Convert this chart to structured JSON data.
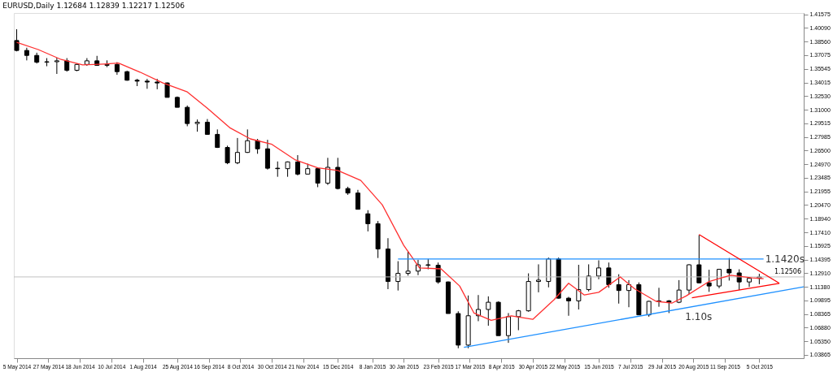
{
  "chart_data": {
    "type": "candlestick",
    "title": "EURUSD,Daily  1.12684 1.12839 1.12217 1.12506",
    "color": "#000000",
    "x": [
      "2014-05-05",
      "2014-05-12",
      "2014-05-19",
      "2014-05-26",
      "2014-06-02",
      "2014-06-09",
      "2014-06-16",
      "2014-06-23",
      "2014-06-30",
      "2014-07-07",
      "2014-07-14",
      "2014-07-21",
      "2014-07-28",
      "2014-08-04",
      "2014-08-11",
      "2014-08-18",
      "2014-08-25",
      "2014-09-01",
      "2014-09-08",
      "2014-09-15",
      "2014-09-22",
      "2014-09-29",
      "2014-10-06",
      "2014-10-13",
      "2014-10-20",
      "2014-10-27",
      "2014-11-03",
      "2014-11-10",
      "2014-11-17",
      "2014-11-24",
      "2014-12-01",
      "2014-12-08",
      "2014-12-15",
      "2014-12-22",
      "2014-12-29",
      "2015-01-05",
      "2015-01-12",
      "2015-01-19",
      "2015-01-26",
      "2015-02-02",
      "2015-02-09",
      "2015-02-16",
      "2015-02-23",
      "2015-03-02",
      "2015-03-09",
      "2015-03-16",
      "2015-03-23",
      "2015-03-30",
      "2015-04-06",
      "2015-04-13",
      "2015-04-20",
      "2015-04-27",
      "2015-05-04",
      "2015-05-11",
      "2015-05-18",
      "2015-05-25",
      "2015-06-01",
      "2015-06-08",
      "2015-06-15",
      "2015-06-22",
      "2015-06-29",
      "2015-07-06",
      "2015-07-13",
      "2015-07-20",
      "2015-07-27",
      "2015-08-03",
      "2015-08-10",
      "2015-08-17",
      "2015-08-24",
      "2015-08-31",
      "2015-09-07",
      "2015-09-14",
      "2015-09-21",
      "2015-09-28",
      "2015-10-05"
    ],
    "ohlc": [
      [
        1.387,
        1.3995,
        1.375,
        1.376
      ],
      [
        1.376,
        1.379,
        1.365,
        1.3705
      ],
      [
        1.3705,
        1.3735,
        1.3615,
        1.363
      ],
      [
        1.363,
        1.3675,
        1.3585,
        1.3635
      ],
      [
        1.3635,
        1.368,
        1.35,
        1.3645
      ],
      [
        1.3645,
        1.3675,
        1.3525,
        1.354
      ],
      [
        1.354,
        1.3615,
        1.353,
        1.3605
      ],
      [
        1.3605,
        1.3675,
        1.359,
        1.3645
      ],
      [
        1.3645,
        1.37,
        1.359,
        1.3595
      ],
      [
        1.3595,
        1.365,
        1.3575,
        1.3605
      ],
      [
        1.3605,
        1.363,
        1.349,
        1.3525
      ],
      [
        1.3525,
        1.3535,
        1.3425,
        1.343
      ],
      [
        1.343,
        1.3445,
        1.3365,
        1.342
      ],
      [
        1.342,
        1.3445,
        1.3335,
        1.341
      ],
      [
        1.341,
        1.3445,
        1.333,
        1.34
      ],
      [
        1.34,
        1.3405,
        1.324,
        1.324
      ],
      [
        1.324,
        1.325,
        1.313,
        1.313
      ],
      [
        1.313,
        1.315,
        1.292,
        1.295
      ],
      [
        1.295,
        1.2995,
        1.286,
        1.2965
      ],
      [
        1.2965,
        1.3,
        1.2825,
        1.283
      ],
      [
        1.283,
        1.2885,
        1.268,
        1.2685
      ],
      [
        1.2685,
        1.2705,
        1.25,
        1.2515
      ],
      [
        1.2515,
        1.279,
        1.25,
        1.263
      ],
      [
        1.263,
        1.2885,
        1.2625,
        1.276
      ],
      [
        1.276,
        1.278,
        1.2615,
        1.267
      ],
      [
        1.267,
        1.277,
        1.244,
        1.2455
      ],
      [
        1.2455,
        1.253,
        1.236,
        1.245
      ],
      [
        1.245,
        1.253,
        1.236,
        1.2525
      ],
      [
        1.2525,
        1.26,
        1.2375,
        1.239
      ],
      [
        1.239,
        1.2505,
        1.239,
        1.245
      ],
      [
        1.245,
        1.246,
        1.2245,
        1.229
      ],
      [
        1.229,
        1.257,
        1.227,
        1.2465
      ],
      [
        1.2465,
        1.257,
        1.222,
        1.223
      ],
      [
        1.223,
        1.225,
        1.216,
        1.218
      ],
      [
        1.218,
        1.2215,
        1.2,
        1.2
      ],
      [
        1.195,
        1.199,
        1.1755,
        1.184
      ],
      [
        1.184,
        1.187,
        1.146,
        1.156
      ],
      [
        1.156,
        1.168,
        1.1115,
        1.12
      ],
      [
        1.12,
        1.1425,
        1.11,
        1.129
      ],
      [
        1.129,
        1.1535,
        1.1265,
        1.1315
      ],
      [
        1.1315,
        1.144,
        1.127,
        1.1385
      ],
      [
        1.1385,
        1.145,
        1.1335,
        1.138
      ],
      [
        1.138,
        1.141,
        1.1175,
        1.1195
      ],
      [
        1.1195,
        1.12,
        1.0845,
        1.0845
      ],
      [
        1.0845,
        1.087,
        1.046,
        1.0495
      ],
      [
        1.0495,
        1.1045,
        1.046,
        1.082
      ],
      [
        1.082,
        1.105,
        1.076,
        1.089
      ],
      [
        1.089,
        1.1035,
        1.071,
        1.097
      ],
      [
        1.097,
        1.098,
        1.06,
        1.06
      ],
      [
        1.06,
        1.085,
        1.052,
        1.081
      ],
      [
        1.081,
        1.0885,
        1.066,
        1.0875
      ],
      [
        1.0875,
        1.129,
        1.0865,
        1.12
      ],
      [
        1.12,
        1.139,
        1.108,
        1.1215
      ],
      [
        1.12,
        1.1465,
        1.1135,
        1.145
      ],
      [
        1.145,
        1.1465,
        1.101,
        1.1015
      ],
      [
        1.1015,
        1.103,
        1.082,
        1.0985
      ],
      [
        1.0985,
        1.1385,
        1.089,
        1.111
      ],
      [
        1.111,
        1.139,
        1.109,
        1.126
      ],
      [
        1.126,
        1.1435,
        1.1225,
        1.135
      ],
      [
        1.135,
        1.141,
        1.113,
        1.1165
      ],
      [
        1.1165,
        1.128,
        1.0955,
        1.11
      ],
      [
        1.11,
        1.1215,
        1.0915,
        1.1165
      ],
      [
        1.1165,
        1.119,
        1.083,
        1.083
      ],
      [
        1.083,
        1.0985,
        1.081,
        1.098
      ],
      [
        1.098,
        1.113,
        1.092,
        1.0985
      ],
      [
        1.0985,
        1.0995,
        1.085,
        1.097
      ],
      [
        1.097,
        1.1215,
        1.096,
        1.1105
      ],
      [
        1.1105,
        1.139,
        1.106,
        1.1385
      ],
      [
        1.1385,
        1.1715,
        1.118,
        1.1185
      ],
      [
        1.1185,
        1.133,
        1.1085,
        1.115
      ],
      [
        1.115,
        1.1335,
        1.1125,
        1.1335
      ],
      [
        1.1335,
        1.146,
        1.121,
        1.1295
      ],
      [
        1.1295,
        1.1335,
        1.1105,
        1.1195
      ],
      [
        1.1195,
        1.1245,
        1.114,
        1.1235
      ],
      [
        1.1235,
        1.1285,
        1.117,
        1.125
      ]
    ],
    "series": [
      {
        "type": "line",
        "color": "#ff3030",
        "x": [
          "2014-05-05",
          "2014-05-20",
          "2014-06-05",
          "2014-06-20",
          "2014-07-05",
          "2014-07-15",
          "2014-07-30",
          "2014-08-15",
          "2014-09-01",
          "2014-09-15",
          "2014-10-01",
          "2014-10-15",
          "2014-10-30",
          "2014-11-15",
          "2014-12-01",
          "2014-12-15",
          "2014-12-31",
          "2015-01-15",
          "2015-01-30",
          "2015-02-10",
          "2015-02-25",
          "2015-03-10",
          "2015-03-20",
          "2015-04-01",
          "2015-04-15",
          "2015-04-30",
          "2015-05-15",
          "2015-05-25",
          "2015-06-05",
          "2015-06-15",
          "2015-06-30",
          "2015-07-10",
          "2015-07-25",
          "2015-08-05",
          "2015-08-15",
          "2015-08-31",
          "2015-09-15",
          "2015-09-30",
          "2015-10-08"
        ],
        "values": [
          1.385,
          1.377,
          1.366,
          1.36,
          1.361,
          1.362,
          1.352,
          1.34,
          1.33,
          1.312,
          1.29,
          1.278,
          1.272,
          1.255,
          1.246,
          1.243,
          1.232,
          1.205,
          1.16,
          1.135,
          1.134,
          1.115,
          1.085,
          1.077,
          1.082,
          1.078,
          1.1,
          1.118,
          1.105,
          1.108,
          1.125,
          1.112,
          1.098,
          1.096,
          1.104,
          1.12,
          1.127,
          1.124,
          1.123
        ]
      },
      {
        "type": "line",
        "color": "#1e90ff",
        "x": [
          "2015-01-26",
          "2015-10-08"
        ],
        "values": [
          1.145,
          1.145
        ]
      },
      {
        "type": "line",
        "color": "#1e90ff",
        "x": [
          "2015-03-13",
          "2015-11-05"
        ],
        "values": [
          1.047,
          1.114
        ]
      },
      {
        "type": "line",
        "color": "#ff0000",
        "x": [
          "2015-08-24",
          "2015-10-19"
        ],
        "values": [
          1.172,
          1.118
        ]
      },
      {
        "type": "line",
        "color": "#ff0000",
        "x": [
          "2015-08-19",
          "2015-10-19"
        ],
        "values": [
          1.102,
          1.118
        ]
      }
    ],
    "xlim": [
      "2014-05-03",
      "2015-11-05"
    ],
    "xticks": [
      {
        "value": "2014-05-05",
        "label": "5 May 2014"
      },
      {
        "value": "2014-05-27",
        "label": "27 May 2014"
      },
      {
        "value": "2014-06-18",
        "label": "18 Jun 2014"
      },
      {
        "value": "2014-07-10",
        "label": "10 Jul 2014"
      },
      {
        "value": "2014-08-01",
        "label": "1 Aug 2014"
      },
      {
        "value": "2014-08-25",
        "label": "25 Aug 2014"
      },
      {
        "value": "2014-09-16",
        "label": "16 Sep 2014"
      },
      {
        "value": "2014-10-08",
        "label": "8 Oct 2014"
      },
      {
        "value": "2014-10-30",
        "label": "30 Oct 2014"
      },
      {
        "value": "2014-11-21",
        "label": "21 Nov 2014"
      },
      {
        "value": "2014-12-15",
        "label": "15 Dec 2014"
      },
      {
        "value": "2015-01-08",
        "label": "8 Jan 2015"
      },
      {
        "value": "2015-01-30",
        "label": "30 Jan 2015"
      },
      {
        "value": "2015-02-23",
        "label": "23 Feb 2015"
      },
      {
        "value": "2015-03-17",
        "label": "17 Mar 2015"
      },
      {
        "value": "2015-04-08",
        "label": "8 Apr 2015"
      },
      {
        "value": "2015-04-30",
        "label": "30 Apr 2015"
      },
      {
        "value": "2015-05-22",
        "label": "22 May 2015"
      },
      {
        "value": "2015-06-15",
        "label": "15 Jun 2015"
      },
      {
        "value": "2015-07-07",
        "label": "7 Jul 2015"
      },
      {
        "value": "2015-07-29",
        "label": "29 Jul 2015"
      },
      {
        "value": "2015-08-20",
        "label": "20 Aug 2015"
      },
      {
        "value": "2015-09-11",
        "label": "11 Sep 2015"
      },
      {
        "value": "2015-10-05",
        "label": "5 Oct 2015"
      }
    ],
    "ylim": [
      1.035,
      1.4175
    ],
    "yticks": [
      1.41575,
      {
        "value": 1.4009,
        "label": "1.40090"
      },
      {
        "value": 1.3856,
        "label": "1.38560"
      },
      1.37075,
      1.35545,
      1.34015,
      {
        "value": 1.3253,
        "label": "1.32530"
      },
      {
        "value": 1.31,
        "label": "1.31000"
      },
      1.29515,
      1.27985,
      {
        "value": 1.265,
        "label": "1.26500"
      },
      {
        "value": 1.2497,
        "label": "1.24970"
      },
      1.23485,
      1.21955,
      {
        "value": 1.2047,
        "label": "1.20470"
      },
      {
        "value": 1.1894,
        "label": "1.18940"
      },
      {
        "value": 1.1741,
        "label": "1.17410"
      },
      1.15925,
      1.14395,
      {
        "value": 1.1291,
        "label": "1.12910"
      },
      {
        "value": 1.1138,
        "label": "1.11380"
      },
      1.09895,
      1.08365,
      {
        "value": 1.0688,
        "label": "1.06880"
      },
      {
        "value": 1.0535,
        "label": "1.05350"
      },
      1.03865
    ],
    "ref_lines": [
      {
        "axis": "y",
        "value": 1.12506,
        "label": "1.12506",
        "color": "#c0c0c0"
      }
    ],
    "annotations": [
      {
        "text": "1.1420s",
        "x": "2015-10-08",
        "y": 1.145
      },
      "1.10s"
    ],
    "grid": false
  }
}
